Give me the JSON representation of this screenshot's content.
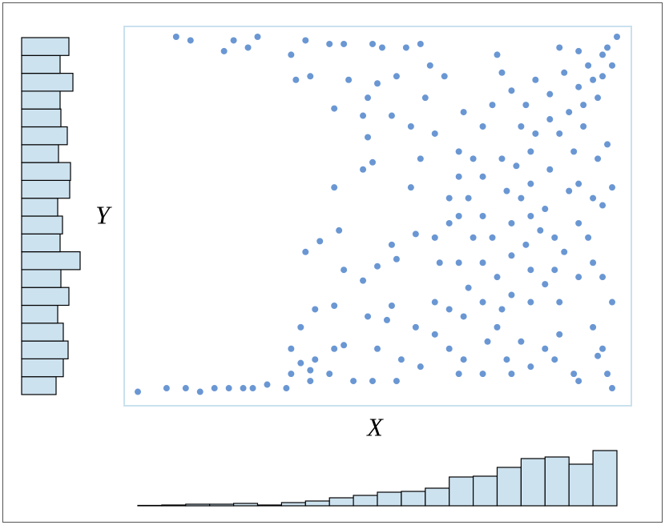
{
  "chart_data": [
    {
      "type": "scatter",
      "x_label": "X",
      "y_label": "Y",
      "xlim": [
        0,
        1
      ],
      "ylim": [
        0,
        1
      ],
      "color": "#6a97d3",
      "x": [
        0,
        0.06,
        0.1,
        0.13,
        0.16,
        0.19,
        0.22,
        0.24,
        0.27,
        0.31,
        0.32,
        0.36,
        0.36,
        0.4,
        0.41,
        0.45,
        0.49,
        0.54,
        0.08,
        0.11,
        0.18,
        0.2,
        0.23,
        0.25,
        0.32,
        0.35,
        0.33,
        0.36,
        0.4,
        0.43,
        0.44,
        0.41,
        0.49,
        0.51,
        0.56,
        0.59,
        0.54,
        0.5,
        0.48,
        0.47,
        0.53,
        0.57,
        0.61,
        0.64,
        0.6,
        0.62,
        0.41,
        0.49,
        0.47,
        0.48,
        0.38,
        0.35,
        0.42,
        0.43,
        0.53,
        0.5,
        0.54,
        0.57,
        0.59,
        0.58,
        0.37,
        0.41,
        0.34,
        0.32,
        0.34,
        0.37,
        0.43,
        0.47,
        0.48,
        0.5,
        0.52,
        0.53,
        0.55,
        0.58,
        0.59,
        0.62,
        0.62,
        0.65,
        0.67,
        0.68,
        0.72,
        0.73,
        0.75,
        0.77,
        0.78,
        0.8,
        0.82,
        0.85,
        0.87,
        0.88,
        0.91,
        0.92,
        0.95,
        0.97,
        0.98,
        0.99,
        0.99,
        0.96,
        0.88,
        0.65,
        0.67,
        0.7,
        0.72,
        0.75,
        0.78,
        0.81,
        0.82,
        0.85,
        0.87,
        0.9,
        0.92,
        0.95,
        0.97,
        0.99,
        0.67,
        0.69,
        0.72,
        0.74,
        0.77,
        0.79,
        0.82,
        0.83,
        0.86,
        0.88,
        0.91,
        0.93,
        0.96,
        0.98,
        0.7,
        0.72,
        0.74,
        0.76,
        0.78,
        0.81,
        0.83,
        0.86,
        0.89,
        0.92,
        0.94,
        0.97,
        0.98,
        1.0,
        0.97,
        0.95,
        0.99,
        0.96,
        0.93,
        0.9,
        0.65,
        0.63,
        0.67,
        0.69,
        0.72,
        0.76,
        0.8,
        0.84,
        0.87,
        0.89,
        0.92,
        0.94,
        0.97,
        0.82,
        0.78,
        0.76,
        0.82,
        0.85,
        0.68,
        0.65,
        0.62,
        0.72,
        0.78,
        0.82,
        0.86,
        0.8,
        0.92,
        0.95,
        0.68,
        0.67,
        0.75,
        0.88,
        0.92
      ],
      "y": [
        0.01,
        0.02,
        0.02,
        0.01,
        0.02,
        0.02,
        0.02,
        0.02,
        0.03,
        0.02,
        0.06,
        0.07,
        0.04,
        0.06,
        0.13,
        0.04,
        0.04,
        0.04,
        1.0,
        0.99,
        0.96,
        0.99,
        0.97,
        1.0,
        0.95,
        0.99,
        0.88,
        0.89,
        0.98,
        0.98,
        0.88,
        0.8,
        0.98,
        0.97,
        0.97,
        0.98,
        0.89,
        0.87,
        0.83,
        0.78,
        0.78,
        0.75,
        0.92,
        0.89,
        0.83,
        0.73,
        0.58,
        0.65,
        0.63,
        0.72,
        0.43,
        0.4,
        0.46,
        0.35,
        0.42,
        0.36,
        0.38,
        0.58,
        0.66,
        0.45,
        0.24,
        0.25,
        0.19,
        0.13,
        0.09,
        0.1,
        0.14,
        0.32,
        0.22,
        0.13,
        0.21,
        0.25,
        0.1,
        0.19,
        0.08,
        0.17,
        0.26,
        0.13,
        0.06,
        0.1,
        0.06,
        0.15,
        0.19,
        0.1,
        0.06,
        0.15,
        0.08,
        0.13,
        0.1,
        0.17,
        0.06,
        0.04,
        0.19,
        0.13,
        0.06,
        0.02,
        0.26,
        0.11,
        0.26,
        0.55,
        0.5,
        0.44,
        0.37,
        0.33,
        0.48,
        0.42,
        0.59,
        0.52,
        0.44,
        0.57,
        0.48,
        0.37,
        0.53,
        0.58,
        0.37,
        0.3,
        0.26,
        0.44,
        0.57,
        0.64,
        0.68,
        0.73,
        0.77,
        0.73,
        0.68,
        0.75,
        0.66,
        0.7,
        0.66,
        0.75,
        0.81,
        0.9,
        0.85,
        0.81,
        0.88,
        0.84,
        0.9,
        0.86,
        0.92,
        0.95,
        0.97,
        1.0,
        0.89,
        0.88,
        0.92,
        0.83,
        0.81,
        0.79,
        0.48,
        0.37,
        0.61,
        0.55,
        0.61,
        0.66,
        0.55,
        0.46,
        0.35,
        0.4,
        0.33,
        0.44,
        0.33,
        0.35,
        0.28,
        0.24,
        0.26,
        0.31,
        0.22,
        0.24,
        0.44,
        0.5,
        0.39,
        0.5,
        0.63,
        0.75,
        0.59,
        0.55,
        0.79,
        0.68,
        0.95,
        0.97,
        0.96
      ]
    },
    {
      "type": "histogram",
      "orientation": "vertical",
      "color": "#cde2ef",
      "bins": [
        0,
        0.05,
        0.1,
        0.15,
        0.2,
        0.25,
        0.3,
        0.35,
        0.4,
        0.45,
        0.5,
        0.55,
        0.6,
        0.65,
        0.7,
        0.75,
        0.8,
        0.85,
        0.9,
        0.95,
        1
      ],
      "counts": [
        1,
        2,
        4,
        4,
        6,
        2,
        8,
        12,
        20,
        26,
        34,
        36,
        44,
        72,
        74,
        96,
        118,
        122,
        104,
        138
      ]
    },
    {
      "type": "histogram",
      "orientation": "horizontal",
      "color": "#cde2ef",
      "bins": [
        0,
        0.05,
        0.1,
        0.15,
        0.2,
        0.25,
        0.3,
        0.35,
        0.4,
        0.45,
        0.5,
        0.55,
        0.6,
        0.65,
        0.7,
        0.75,
        0.8,
        0.85,
        0.9,
        0.95,
        1
      ],
      "counts": [
        43,
        52,
        58,
        52,
        45,
        59,
        49,
        73,
        48,
        51,
        45,
        60,
        61,
        46,
        57,
        49,
        48,
        64,
        48,
        59
      ]
    }
  ]
}
